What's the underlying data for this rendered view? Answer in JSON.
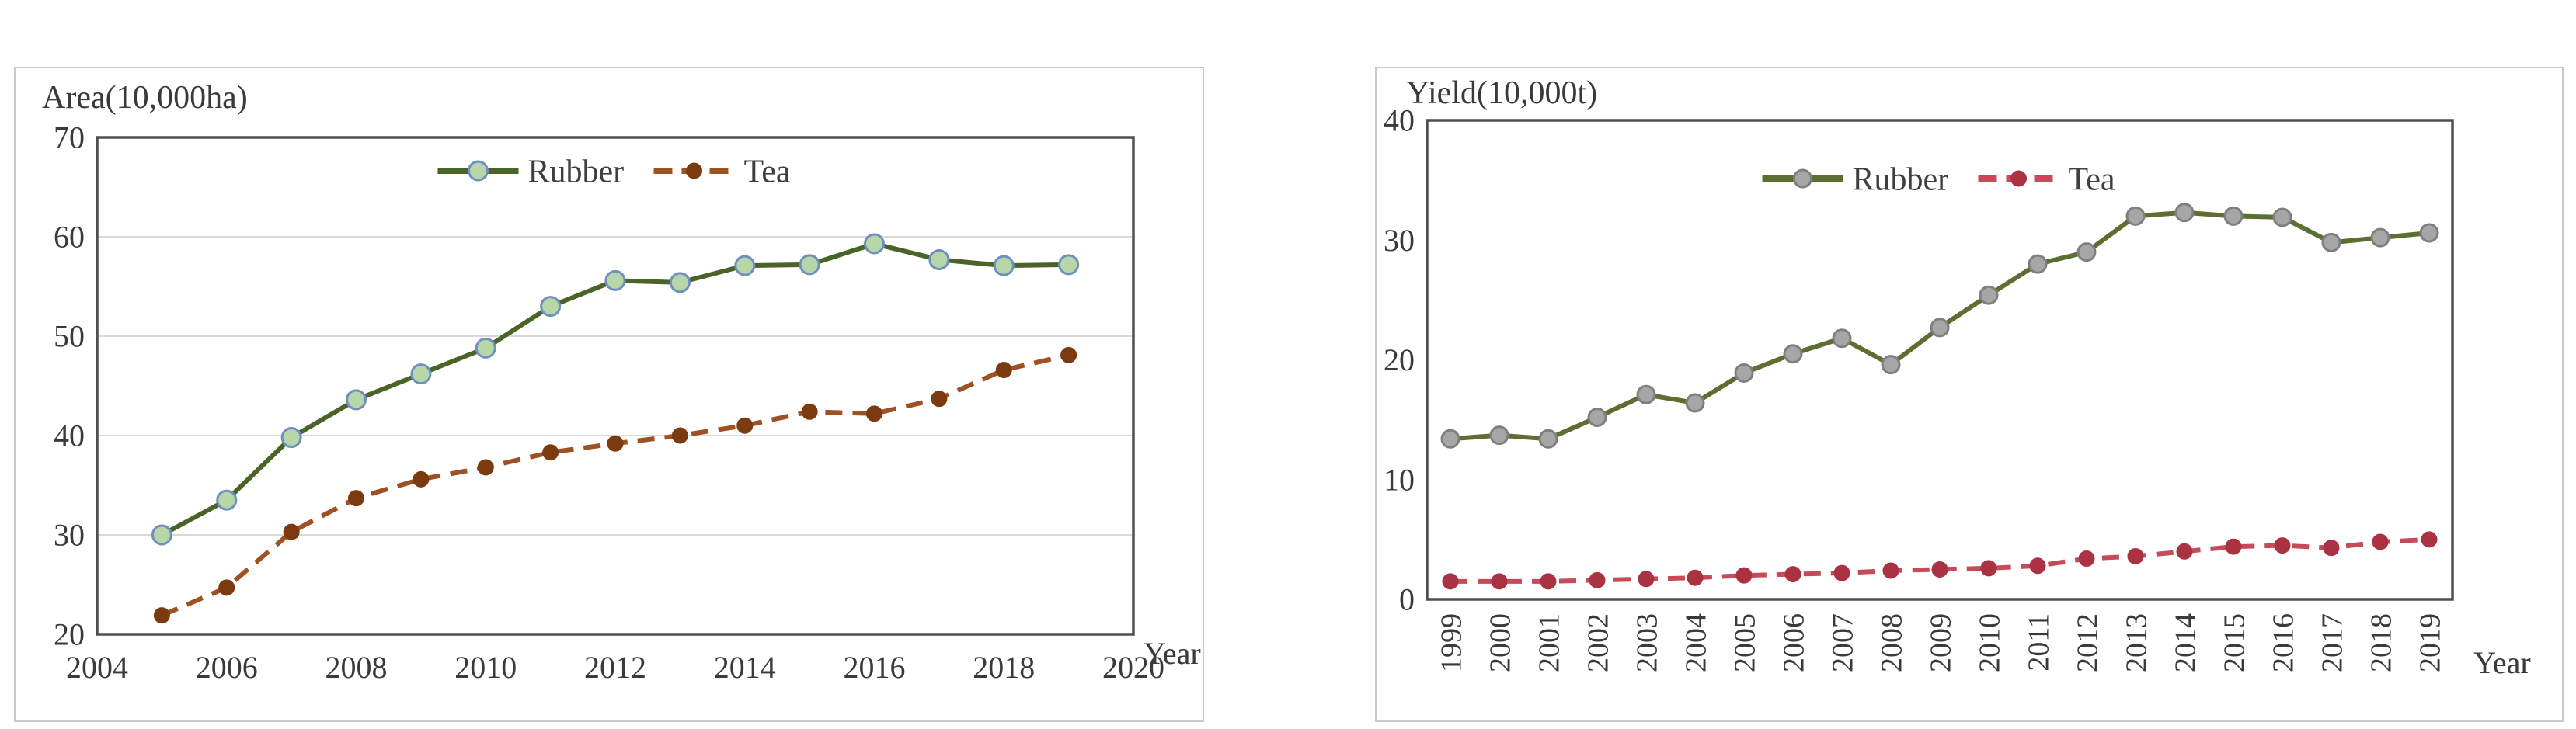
{
  "page": {
    "background": "#ffffff",
    "description_left_panel": "Rubber and Tea plantation area by year",
    "description_right_panel": "Rubber and Tea yield by year"
  },
  "chart_data": [
    {
      "type": "line",
      "title": "Area(10,000ha)",
      "xlabel": "Year",
      "ylabel": "",
      "x": [
        2005,
        2006,
        2007,
        2008,
        2009,
        2010,
        2011,
        2012,
        2013,
        2014,
        2015,
        2016,
        2017,
        2018,
        2019
      ],
      "series": [
        {
          "name": "Rubber",
          "values": [
            30.0,
            33.5,
            39.8,
            43.6,
            46.2,
            48.8,
            53.0,
            55.6,
            55.4,
            57.1,
            57.2,
            59.3,
            57.7,
            57.1,
            57.2
          ],
          "line_color": "#4a6428",
          "line_style": "solid",
          "marker": "circle",
          "marker_fill": "#b7d7a8",
          "marker_stroke": "#6f8fc0",
          "marker_radius": 12
        },
        {
          "name": "Tea",
          "values": [
            21.9,
            24.7,
            30.3,
            33.7,
            35.6,
            36.8,
            38.3,
            39.2,
            40.0,
            41.0,
            42.4,
            42.2,
            43.7,
            46.6,
            48.1
          ],
          "line_color": "#9e5122",
          "line_style": "dashed",
          "marker": "circle",
          "marker_fill": "#7b3a10",
          "marker_stroke": "#7b3a10",
          "marker_radius": 9
        }
      ],
      "xlim": [
        2004,
        2020
      ],
      "x_ticks": [
        2004,
        2006,
        2008,
        2010,
        2012,
        2014,
        2016,
        2018,
        2020
      ],
      "ylim": [
        20,
        70
      ],
      "y_ticks": [
        20,
        30,
        40,
        50,
        60,
        70
      ],
      "grid": "horizontal",
      "legend": [
        "Rubber",
        "Tea"
      ],
      "legend_position": "top-center",
      "x_tick_rotation": 0
    },
    {
      "type": "line",
      "title": "Yield(10,000t)",
      "xlabel": "Year",
      "ylabel": "",
      "x": [
        1999,
        2000,
        2001,
        2002,
        2003,
        2004,
        2005,
        2006,
        2007,
        2008,
        2009,
        2010,
        2011,
        2012,
        2013,
        2014,
        2015,
        2016,
        2017,
        2018,
        2019
      ],
      "series": [
        {
          "name": "Rubber",
          "values": [
            13.4,
            13.7,
            13.4,
            15.2,
            17.1,
            16.4,
            18.9,
            20.5,
            21.8,
            19.6,
            22.7,
            25.4,
            28.0,
            29.0,
            32.0,
            32.3,
            32.0,
            31.9,
            29.8,
            30.2,
            30.6
          ],
          "line_color": "#5d6e33",
          "line_style": "solid",
          "marker": "circle",
          "marker_fill": "#a6a6a6",
          "marker_stroke": "#7f7f7f",
          "marker_radius": 11
        },
        {
          "name": "Tea",
          "values": [
            1.5,
            1.5,
            1.5,
            1.6,
            1.7,
            1.8,
            2.0,
            2.1,
            2.2,
            2.4,
            2.5,
            2.6,
            2.8,
            3.4,
            3.6,
            4.0,
            4.4,
            4.5,
            4.3,
            4.8,
            5.0
          ],
          "line_color": "#c74a59",
          "line_style": "dashed",
          "marker": "circle",
          "marker_fill": "#aa3242",
          "marker_stroke": "#aa3242",
          "marker_radius": 9
        }
      ],
      "xlim": null,
      "x_ticks": [
        1999,
        2000,
        2001,
        2002,
        2003,
        2004,
        2005,
        2006,
        2007,
        2008,
        2009,
        2010,
        2011,
        2012,
        2013,
        2014,
        2015,
        2016,
        2017,
        2018,
        2019
      ],
      "ylim": [
        0,
        40
      ],
      "y_ticks": [
        0,
        10,
        20,
        30,
        40
      ],
      "grid": "none",
      "legend": [
        "Rubber",
        "Tea"
      ],
      "legend_position": "top-center",
      "x_tick_rotation": -90
    }
  ],
  "style": {
    "axis_text_color": "#3a3a3a",
    "plot_border_color": "#4f4f4f",
    "gridline_color": "#d9d9d9",
    "panel_border_color": "#c9c9c9"
  }
}
